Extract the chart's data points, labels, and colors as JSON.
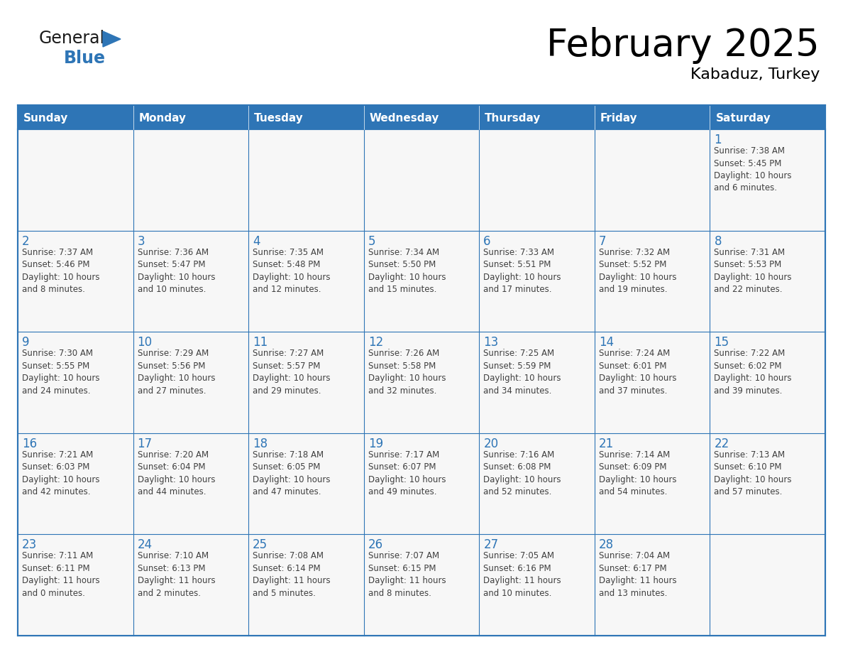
{
  "title": "February 2025",
  "subtitle": "Kabaduz, Turkey",
  "days_of_week": [
    "Sunday",
    "Monday",
    "Tuesday",
    "Wednesday",
    "Thursday",
    "Friday",
    "Saturday"
  ],
  "header_bg": "#2E75B6",
  "header_text": "#FFFFFF",
  "border_color": "#2E75B6",
  "day_num_color": "#2E75B6",
  "info_text_color": "#404040",
  "logo_general_color": "#1a1a1a",
  "logo_blue_color": "#2E75B6",
  "calendar_data": [
    [
      {
        "day": null,
        "info": null
      },
      {
        "day": null,
        "info": null
      },
      {
        "day": null,
        "info": null
      },
      {
        "day": null,
        "info": null
      },
      {
        "day": null,
        "info": null
      },
      {
        "day": null,
        "info": null
      },
      {
        "day": 1,
        "info": "Sunrise: 7:38 AM\nSunset: 5:45 PM\nDaylight: 10 hours\nand 6 minutes."
      }
    ],
    [
      {
        "day": 2,
        "info": "Sunrise: 7:37 AM\nSunset: 5:46 PM\nDaylight: 10 hours\nand 8 minutes."
      },
      {
        "day": 3,
        "info": "Sunrise: 7:36 AM\nSunset: 5:47 PM\nDaylight: 10 hours\nand 10 minutes."
      },
      {
        "day": 4,
        "info": "Sunrise: 7:35 AM\nSunset: 5:48 PM\nDaylight: 10 hours\nand 12 minutes."
      },
      {
        "day": 5,
        "info": "Sunrise: 7:34 AM\nSunset: 5:50 PM\nDaylight: 10 hours\nand 15 minutes."
      },
      {
        "day": 6,
        "info": "Sunrise: 7:33 AM\nSunset: 5:51 PM\nDaylight: 10 hours\nand 17 minutes."
      },
      {
        "day": 7,
        "info": "Sunrise: 7:32 AM\nSunset: 5:52 PM\nDaylight: 10 hours\nand 19 minutes."
      },
      {
        "day": 8,
        "info": "Sunrise: 7:31 AM\nSunset: 5:53 PM\nDaylight: 10 hours\nand 22 minutes."
      }
    ],
    [
      {
        "day": 9,
        "info": "Sunrise: 7:30 AM\nSunset: 5:55 PM\nDaylight: 10 hours\nand 24 minutes."
      },
      {
        "day": 10,
        "info": "Sunrise: 7:29 AM\nSunset: 5:56 PM\nDaylight: 10 hours\nand 27 minutes."
      },
      {
        "day": 11,
        "info": "Sunrise: 7:27 AM\nSunset: 5:57 PM\nDaylight: 10 hours\nand 29 minutes."
      },
      {
        "day": 12,
        "info": "Sunrise: 7:26 AM\nSunset: 5:58 PM\nDaylight: 10 hours\nand 32 minutes."
      },
      {
        "day": 13,
        "info": "Sunrise: 7:25 AM\nSunset: 5:59 PM\nDaylight: 10 hours\nand 34 minutes."
      },
      {
        "day": 14,
        "info": "Sunrise: 7:24 AM\nSunset: 6:01 PM\nDaylight: 10 hours\nand 37 minutes."
      },
      {
        "day": 15,
        "info": "Sunrise: 7:22 AM\nSunset: 6:02 PM\nDaylight: 10 hours\nand 39 minutes."
      }
    ],
    [
      {
        "day": 16,
        "info": "Sunrise: 7:21 AM\nSunset: 6:03 PM\nDaylight: 10 hours\nand 42 minutes."
      },
      {
        "day": 17,
        "info": "Sunrise: 7:20 AM\nSunset: 6:04 PM\nDaylight: 10 hours\nand 44 minutes."
      },
      {
        "day": 18,
        "info": "Sunrise: 7:18 AM\nSunset: 6:05 PM\nDaylight: 10 hours\nand 47 minutes."
      },
      {
        "day": 19,
        "info": "Sunrise: 7:17 AM\nSunset: 6:07 PM\nDaylight: 10 hours\nand 49 minutes."
      },
      {
        "day": 20,
        "info": "Sunrise: 7:16 AM\nSunset: 6:08 PM\nDaylight: 10 hours\nand 52 minutes."
      },
      {
        "day": 21,
        "info": "Sunrise: 7:14 AM\nSunset: 6:09 PM\nDaylight: 10 hours\nand 54 minutes."
      },
      {
        "day": 22,
        "info": "Sunrise: 7:13 AM\nSunset: 6:10 PM\nDaylight: 10 hours\nand 57 minutes."
      }
    ],
    [
      {
        "day": 23,
        "info": "Sunrise: 7:11 AM\nSunset: 6:11 PM\nDaylight: 11 hours\nand 0 minutes."
      },
      {
        "day": 24,
        "info": "Sunrise: 7:10 AM\nSunset: 6:13 PM\nDaylight: 11 hours\nand 2 minutes."
      },
      {
        "day": 25,
        "info": "Sunrise: 7:08 AM\nSunset: 6:14 PM\nDaylight: 11 hours\nand 5 minutes."
      },
      {
        "day": 26,
        "info": "Sunrise: 7:07 AM\nSunset: 6:15 PM\nDaylight: 11 hours\nand 8 minutes."
      },
      {
        "day": 27,
        "info": "Sunrise: 7:05 AM\nSunset: 6:16 PM\nDaylight: 11 hours\nand 10 minutes."
      },
      {
        "day": 28,
        "info": "Sunrise: 7:04 AM\nSunset: 6:17 PM\nDaylight: 11 hours\nand 13 minutes."
      },
      {
        "day": null,
        "info": null
      }
    ]
  ]
}
